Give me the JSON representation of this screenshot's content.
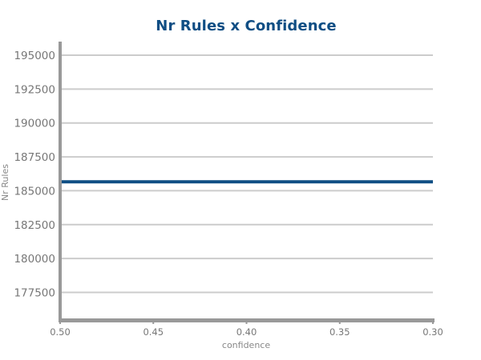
{
  "chart_data": {
    "type": "line",
    "title": "Nr Rules x Confidence",
    "xlabel": "confidence",
    "ylabel": "Nr Rules",
    "x_reversed": true,
    "xlim": [
      0.5,
      0.3
    ],
    "ylim": [
      175500,
      196000
    ],
    "x_ticks": [
      "0.50",
      "0.45",
      "0.40",
      "0.35",
      "0.30"
    ],
    "y_ticks": [
      "195000",
      "192500",
      "190000",
      "187500",
      "185000",
      "182500",
      "180000",
      "177500"
    ],
    "grid": true,
    "series": [
      {
        "x": [
          0.5,
          0.45,
          0.4,
          0.35,
          0.3
        ],
        "y": [
          185660,
          185660,
          185660,
          185660,
          185660
        ],
        "color": "#0f4e84"
      }
    ],
    "colors": {
      "title": "#0f4e84",
      "line": "#0f4e84",
      "grid": "#cccccc",
      "axis": "#999999",
      "tick_text": "#777777"
    }
  }
}
